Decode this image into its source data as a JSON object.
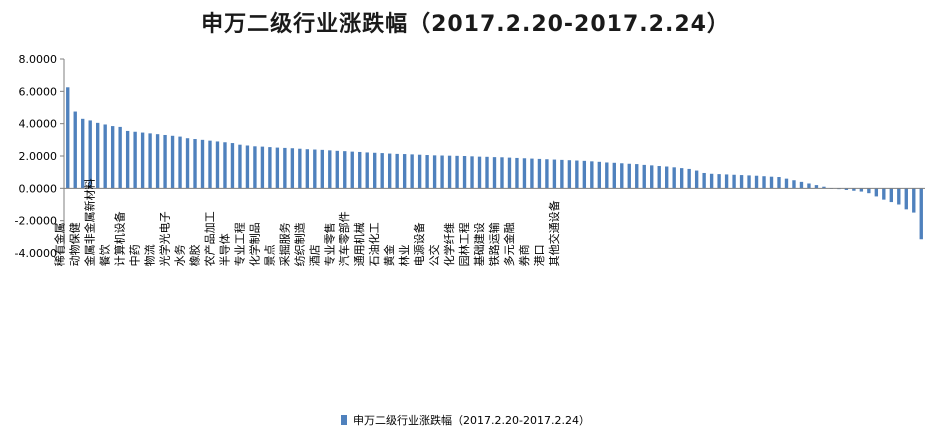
{
  "chart_data": {
    "type": "bar",
    "title": "申万二级行业涨跌幅（2017.2.20-2017.2.24）",
    "xlabel": "",
    "ylabel": "",
    "ylim": [
      -4,
      8
    ],
    "yticks": [
      "8.0000",
      "6.0000",
      "4.0000",
      "2.0000",
      "0.0000",
      "-2.0000",
      "-4.0000"
    ],
    "grid": false,
    "legend_position": "bottom",
    "bar_color": "#4f81bd",
    "labeled_categories": [
      "稀有金属",
      "动物保健",
      "金属非金属新材料",
      "餐饮",
      "计算机设备",
      "中药",
      "物流",
      "光学光电子",
      "水务",
      "橡胶",
      "农产品加工",
      "半导体",
      "专业工程",
      "化学制品",
      "景点",
      "采掘服务",
      "纺织制造",
      "酒店",
      "专业零售",
      "汽车零部件",
      "通用机械",
      "石油化工",
      "黄金",
      "林业",
      "电源设备",
      "公交",
      "化学纤维",
      "园林工程",
      "基础建设",
      "铁路运输",
      "多元金融",
      "券商",
      "港口",
      "其他交通设备"
    ],
    "label_every": 2,
    "series": [
      {
        "name": "申万二级行业涨跌幅（2017.2.20-2017.2.24）",
        "values": [
          6.25,
          4.75,
          4.3,
          4.2,
          4.05,
          3.95,
          3.85,
          3.8,
          3.55,
          3.5,
          3.45,
          3.4,
          3.35,
          3.3,
          3.25,
          3.2,
          3.1,
          3.05,
          3.0,
          2.95,
          2.9,
          2.85,
          2.8,
          2.7,
          2.65,
          2.6,
          2.58,
          2.55,
          2.52,
          2.5,
          2.48,
          2.45,
          2.42,
          2.4,
          2.38,
          2.35,
          2.32,
          2.3,
          2.27,
          2.25,
          2.22,
          2.2,
          2.18,
          2.15,
          2.13,
          2.12,
          2.1,
          2.08,
          2.06,
          2.04,
          2.03,
          2.02,
          2.01,
          2.0,
          1.98,
          1.96,
          1.95,
          1.93,
          1.92,
          1.9,
          1.88,
          1.86,
          1.84,
          1.82,
          1.8,
          1.78,
          1.76,
          1.74,
          1.72,
          1.7,
          1.67,
          1.64,
          1.6,
          1.58,
          1.55,
          1.52,
          1.5,
          1.45,
          1.42,
          1.38,
          1.35,
          1.3,
          1.25,
          1.2,
          1.1,
          0.95,
          0.9,
          0.88,
          0.86,
          0.84,
          0.82,
          0.8,
          0.78,
          0.75,
          0.72,
          0.7,
          0.6,
          0.5,
          0.4,
          0.3,
          0.2,
          0.1,
          0.0,
          -0.05,
          -0.1,
          -0.15,
          -0.2,
          -0.3,
          -0.5,
          -0.7,
          -0.85,
          -1.0,
          -1.3,
          -1.5,
          -3.15
        ]
      }
    ]
  }
}
